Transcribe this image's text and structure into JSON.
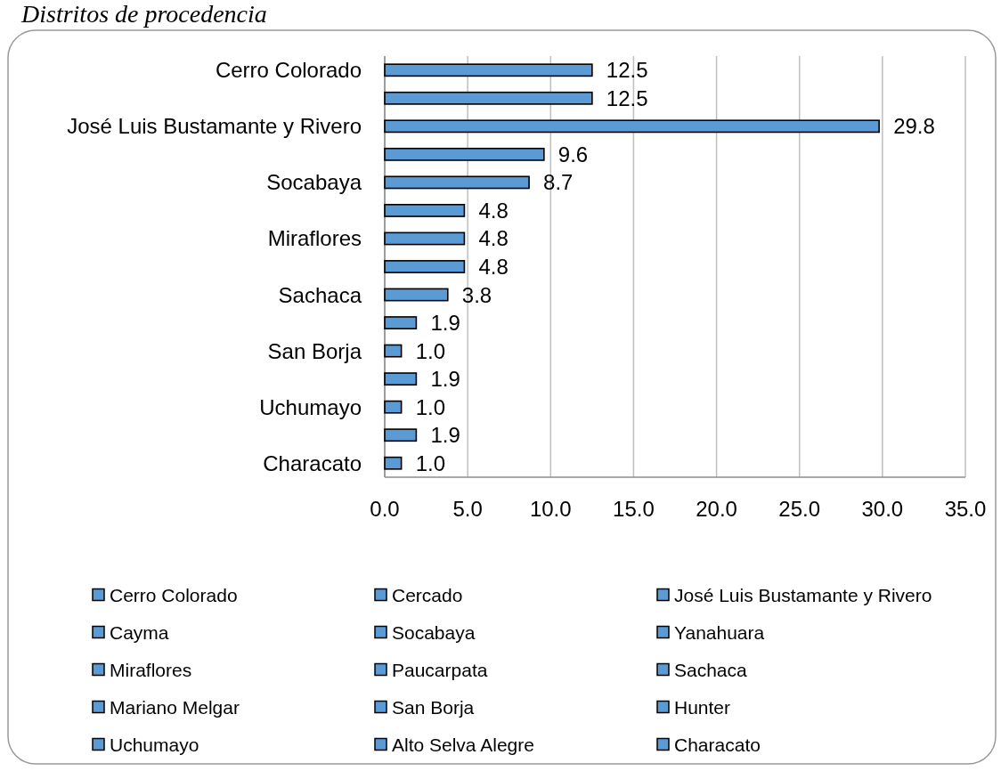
{
  "chart_data": {
    "type": "bar",
    "title": "Distritos de procedencia",
    "orientation": "horizontal",
    "stacked": true,
    "categories": [
      "Cerro Colorado",
      null,
      "José Luis Bustamante y Rivero",
      null,
      "Socabaya",
      null,
      "Miraflores",
      null,
      "Sachaca",
      null,
      "San Borja",
      null,
      "Uchumayo",
      null,
      "Characato"
    ],
    "series": [
      {
        "name": "Cerro Colorado",
        "color": "#5b9bd5",
        "values": [
          12.5,
          null,
          null,
          null,
          null,
          null,
          null,
          null,
          null,
          null,
          null,
          null,
          null,
          null,
          null
        ],
        "value_labels": [
          "12.5",
          null,
          null,
          null,
          null,
          null,
          null,
          null,
          null,
          null,
          null,
          null,
          null,
          null,
          null
        ]
      },
      {
        "name": "Cercado",
        "color": "#5b9bd5",
        "values": [
          null,
          12.5,
          null,
          null,
          null,
          null,
          null,
          null,
          null,
          null,
          null,
          null,
          null,
          null,
          null
        ],
        "value_labels": [
          null,
          "12.5",
          null,
          null,
          null,
          null,
          null,
          null,
          null,
          null,
          null,
          null,
          null,
          null,
          null
        ]
      },
      {
        "name": "José Luis Bustamante y Rivero",
        "color": "#5b9bd5",
        "values": [
          null,
          null,
          29.8,
          null,
          null,
          null,
          null,
          null,
          null,
          null,
          null,
          null,
          null,
          null,
          null
        ],
        "value_labels": [
          null,
          null,
          "29.8",
          null,
          null,
          null,
          null,
          null,
          null,
          null,
          null,
          null,
          null,
          null,
          null
        ]
      },
      {
        "name": "Cayma",
        "color": "#5b9bd5",
        "values": [
          null,
          null,
          null,
          9.6,
          null,
          null,
          null,
          null,
          null,
          null,
          null,
          null,
          null,
          null,
          null
        ],
        "value_labels": [
          null,
          null,
          null,
          "9.6",
          null,
          null,
          null,
          null,
          null,
          null,
          null,
          null,
          null,
          null,
          null
        ]
      },
      {
        "name": "Socabaya",
        "color": "#5b9bd5",
        "values": [
          null,
          null,
          null,
          null,
          8.7,
          null,
          null,
          null,
          null,
          null,
          null,
          null,
          null,
          null,
          null
        ],
        "value_labels": [
          null,
          null,
          null,
          null,
          "8.7",
          null,
          null,
          null,
          null,
          null,
          null,
          null,
          null,
          null,
          null
        ]
      },
      {
        "name": "Yanahuara",
        "color": "#5b9bd5",
        "values": [
          null,
          null,
          null,
          null,
          null,
          4.8,
          null,
          null,
          null,
          null,
          null,
          null,
          null,
          null,
          null
        ],
        "value_labels": [
          null,
          null,
          null,
          null,
          null,
          "4.8",
          null,
          null,
          null,
          null,
          null,
          null,
          null,
          null,
          null
        ]
      },
      {
        "name": "Miraflores",
        "color": "#5b9bd5",
        "values": [
          null,
          null,
          null,
          null,
          null,
          null,
          4.8,
          null,
          null,
          null,
          null,
          null,
          null,
          null,
          null
        ],
        "value_labels": [
          null,
          null,
          null,
          null,
          null,
          null,
          "4.8",
          null,
          null,
          null,
          null,
          null,
          null,
          null,
          null
        ]
      },
      {
        "name": "Paucarpata",
        "color": "#5b9bd5",
        "values": [
          null,
          null,
          null,
          null,
          null,
          null,
          null,
          4.8,
          null,
          null,
          null,
          null,
          null,
          null,
          null
        ],
        "value_labels": [
          null,
          null,
          null,
          null,
          null,
          null,
          null,
          "4.8",
          null,
          null,
          null,
          null,
          null,
          null,
          null
        ]
      },
      {
        "name": "Sachaca",
        "color": "#5b9bd5",
        "values": [
          null,
          null,
          null,
          null,
          null,
          null,
          null,
          null,
          3.8,
          null,
          null,
          null,
          null,
          null,
          null
        ],
        "value_labels": [
          null,
          null,
          null,
          null,
          null,
          null,
          null,
          null,
          "3.8",
          null,
          null,
          null,
          null,
          null,
          null
        ]
      },
      {
        "name": "Mariano Melgar",
        "color": "#5b9bd5",
        "values": [
          null,
          null,
          null,
          null,
          null,
          null,
          null,
          null,
          null,
          1.9,
          null,
          null,
          null,
          null,
          null
        ],
        "value_labels": [
          null,
          null,
          null,
          null,
          null,
          null,
          null,
          null,
          null,
          "1.9",
          null,
          null,
          null,
          null,
          null
        ]
      },
      {
        "name": "San Borja",
        "color": "#5b9bd5",
        "values": [
          null,
          null,
          null,
          null,
          null,
          null,
          null,
          null,
          null,
          null,
          1.0,
          null,
          null,
          null,
          null
        ],
        "value_labels": [
          null,
          null,
          null,
          null,
          null,
          null,
          null,
          null,
          null,
          null,
          "1.0",
          null,
          null,
          null,
          null
        ]
      },
      {
        "name": "Hunter",
        "color": "#5b9bd5",
        "values": [
          null,
          null,
          null,
          null,
          null,
          null,
          null,
          null,
          null,
          null,
          null,
          1.9,
          null,
          null,
          null
        ],
        "value_labels": [
          null,
          null,
          null,
          null,
          null,
          null,
          null,
          null,
          null,
          null,
          null,
          "1.9",
          null,
          null,
          null
        ]
      },
      {
        "name": "Uchumayo",
        "color": "#5b9bd5",
        "values": [
          null,
          null,
          null,
          null,
          null,
          null,
          null,
          null,
          null,
          null,
          null,
          null,
          1.0,
          null,
          null
        ],
        "value_labels": [
          null,
          null,
          null,
          null,
          null,
          null,
          null,
          null,
          null,
          null,
          null,
          null,
          "1.0",
          null,
          null
        ]
      },
      {
        "name": "Alto Selva Alegre",
        "color": "#5b9bd5",
        "values": [
          null,
          null,
          null,
          null,
          null,
          null,
          null,
          null,
          null,
          null,
          null,
          null,
          null,
          1.9,
          null
        ],
        "value_labels": [
          null,
          null,
          null,
          null,
          null,
          null,
          null,
          null,
          null,
          null,
          null,
          null,
          null,
          "1.9",
          null
        ]
      },
      {
        "name": "Characato",
        "color": "#5b9bd5",
        "values": [
          null,
          null,
          null,
          null,
          null,
          null,
          null,
          null,
          null,
          null,
          null,
          null,
          null,
          null,
          1.0
        ],
        "value_labels": [
          null,
          null,
          null,
          null,
          null,
          null,
          null,
          null,
          null,
          null,
          null,
          null,
          null,
          null,
          "1.0"
        ]
      }
    ],
    "xlim": [
      0,
      35
    ],
    "xticks": [
      {
        "value": 0,
        "label": "0.0"
      },
      {
        "value": 5,
        "label": "5.0"
      },
      {
        "value": 10,
        "label": "10.0"
      },
      {
        "value": 15,
        "label": "15.0"
      },
      {
        "value": 20,
        "label": "20.0"
      },
      {
        "value": 25,
        "label": "25.0"
      },
      {
        "value": 30,
        "label": "30.0"
      },
      {
        "value": 35,
        "label": "35.0"
      }
    ],
    "grid": "x",
    "legend": "bottom"
  }
}
